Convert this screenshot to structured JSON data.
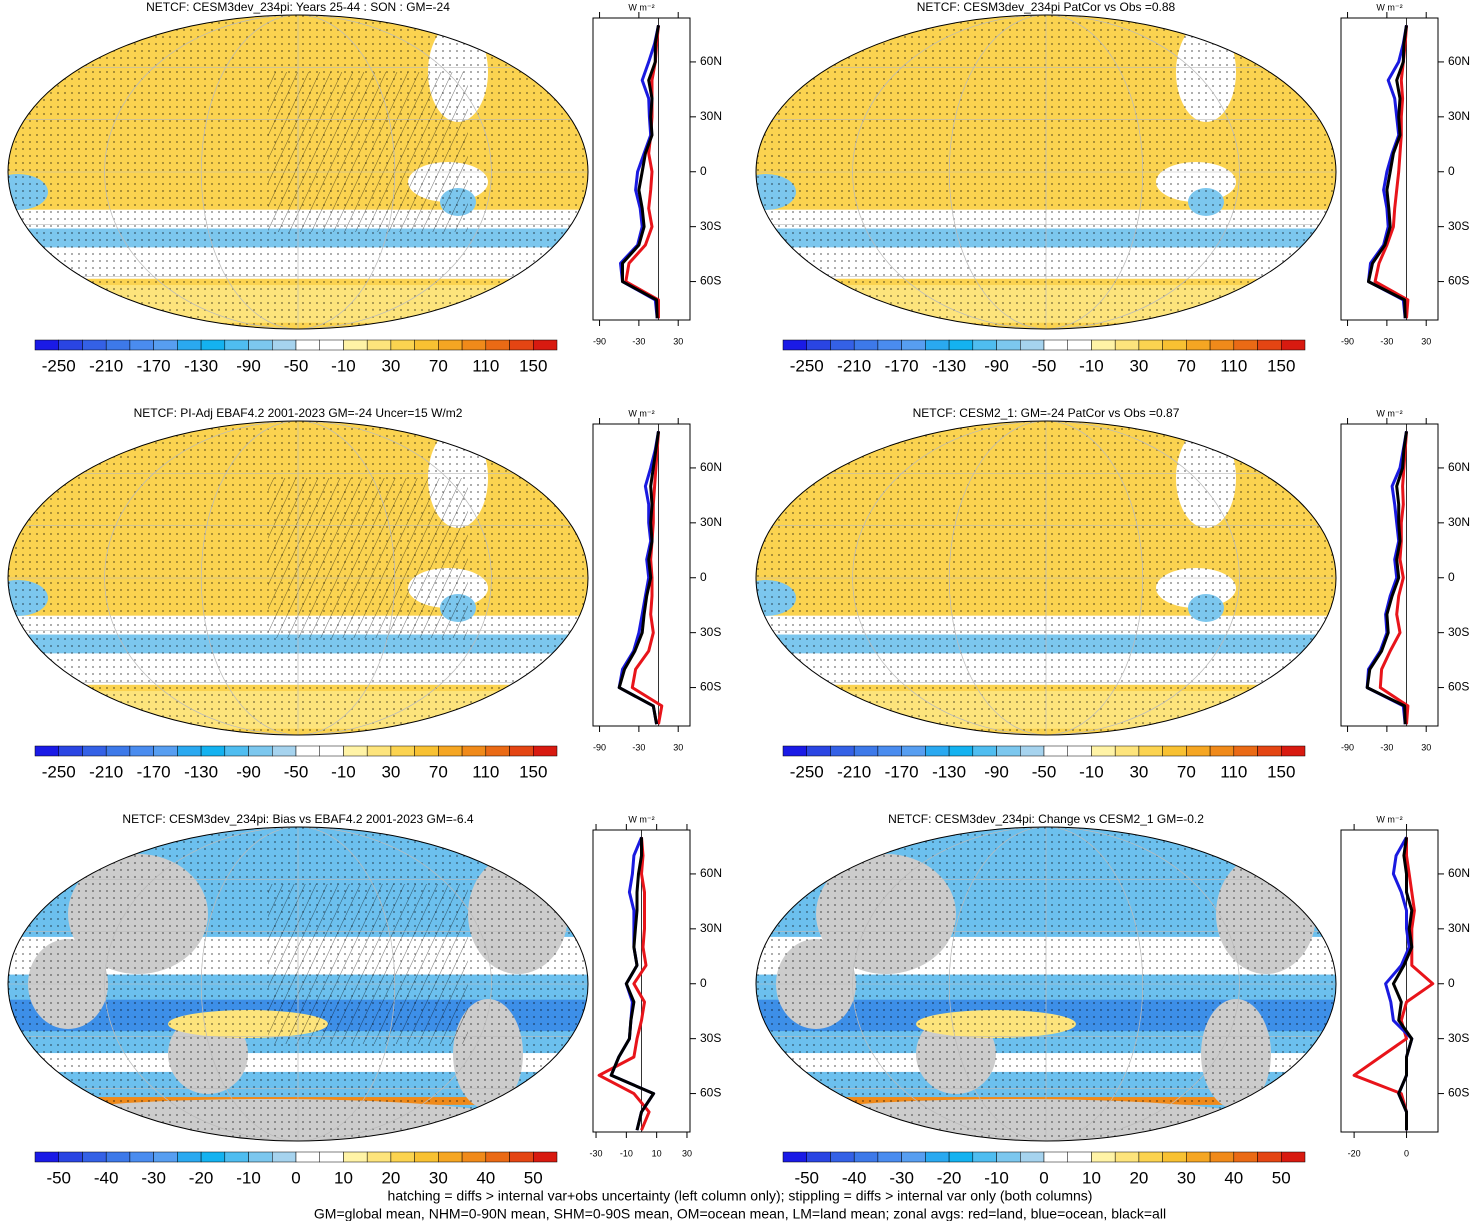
{
  "chart_data": [
    {
      "type": "line",
      "title": "NETCF: CESM3dev_234pi: Years 25-44 : SON : GM=-24",
      "colorbar": {
        "colors": [
          "#1a1ae6",
          "#2a45e3",
          "#3461e6",
          "#3d79e9",
          "#4a8cef",
          "#579ef1",
          "#2aa9f0",
          "#14b2f0",
          "#4fbdf0",
          "#7cc7ee",
          "#a6d3ee",
          "#ffffff",
          "#ffffff",
          "#fff3a6",
          "#fde47c",
          "#fbd350",
          "#f8c132",
          "#f5a623",
          "#f08a1a",
          "#ea6a15",
          "#e44513",
          "#d81a10"
        ],
        "labels": [
          -250,
          -210,
          -170,
          -130,
          -90,
          -50,
          -10,
          30,
          70,
          110,
          150
        ]
      },
      "ylabel": "W m⁻²",
      "x": [
        -80,
        -70,
        -60,
        -50,
        -40,
        -30,
        -20,
        -10,
        0,
        10,
        20,
        30,
        40,
        50,
        60,
        70,
        80
      ],
      "series": [
        {
          "color": "#e8141a",
          "values": [
            0,
            0,
            -50,
            -45,
            -20,
            -10,
            -15,
            -12,
            -10,
            -15,
            -12,
            -10,
            -10,
            -10,
            -5,
            -3,
            0
          ]
        },
        {
          "color": "#1a1ae0",
          "values": [
            -2,
            -5,
            -55,
            -58,
            -32,
            -25,
            -28,
            -35,
            -32,
            -22,
            -12,
            -14,
            -15,
            -25,
            -15,
            -6,
            0
          ]
        },
        {
          "color": "#000000",
          "values": [
            -2,
            -3,
            -55,
            -55,
            -30,
            -22,
            -25,
            -30,
            -25,
            -20,
            -10,
            -12,
            -10,
            -15,
            -5,
            -5,
            0
          ]
        }
      ],
      "xlim": [
        -81,
        84
      ],
      "xticks": [
        {
          "value": 60,
          "label": "60N"
        },
        {
          "value": 30,
          "label": "30N"
        },
        0,
        {
          "value": -30,
          "label": "30S"
        },
        {
          "value": -60,
          "label": "60S"
        }
      ],
      "ylim": [
        -100,
        48
      ],
      "yticks": [
        -90,
        -30,
        30
      ]
    },
    {
      "type": "line",
      "title": "NETCF: CESM3dev_234pi PatCor vs Obs =0.88",
      "colorbar": {
        "colors": [
          "#1a1ae6",
          "#2a45e3",
          "#3461e6",
          "#3d79e9",
          "#4a8cef",
          "#579ef1",
          "#2aa9f0",
          "#14b2f0",
          "#4fbdf0",
          "#7cc7ee",
          "#a6d3ee",
          "#ffffff",
          "#ffffff",
          "#fff3a6",
          "#fde47c",
          "#fbd350",
          "#f8c132",
          "#f5a623",
          "#f08a1a",
          "#ea6a15",
          "#e44513",
          "#d81a10"
        ],
        "labels": [
          -250,
          -210,
          -170,
          -130,
          -90,
          -50,
          -10,
          30,
          70,
          110,
          150
        ]
      },
      "ylabel": "W m⁻²",
      "x": [
        -80,
        -70,
        -60,
        -50,
        -40,
        -30,
        -20,
        -10,
        0,
        10,
        20,
        30,
        40,
        50,
        60,
        70,
        80
      ],
      "series": [
        {
          "color": "#e8141a",
          "values": [
            0,
            2,
            -48,
            -42,
            -30,
            -20,
            -18,
            -15,
            -12,
            -10,
            -8,
            -8,
            -6,
            -8,
            -5,
            -2,
            0
          ]
        },
        {
          "color": "#1a1ae0",
          "values": [
            -2,
            -5,
            -58,
            -55,
            -35,
            -28,
            -30,
            -35,
            -30,
            -22,
            -12,
            -15,
            -18,
            -28,
            -12,
            -5,
            0
          ]
        },
        {
          "color": "#000000",
          "values": [
            -2,
            -3,
            -58,
            -52,
            -33,
            -25,
            -27,
            -30,
            -25,
            -20,
            -10,
            -12,
            -10,
            -15,
            -5,
            -4,
            0
          ]
        }
      ],
      "xlim": [
        -81,
        84
      ],
      "xticks": [
        {
          "value": 60,
          "label": "60N"
        },
        {
          "value": 30,
          "label": "30N"
        },
        0,
        {
          "value": -30,
          "label": "30S"
        },
        {
          "value": -60,
          "label": "60S"
        }
      ],
      "ylim": [
        -100,
        48
      ],
      "yticks": [
        -90,
        -30,
        30
      ]
    },
    {
      "type": "line",
      "title": "NETCF: PI-Adj EBAF4.2 2001-2023 GM=-24 Uncer=15 W/m2",
      "colorbar": {
        "colors": [
          "#1a1ae6",
          "#2a45e3",
          "#3461e6",
          "#3d79e9",
          "#4a8cef",
          "#579ef1",
          "#2aa9f0",
          "#14b2f0",
          "#4fbdf0",
          "#7cc7ee",
          "#a6d3ee",
          "#ffffff",
          "#ffffff",
          "#fff3a6",
          "#fde47c",
          "#fbd350",
          "#f8c132",
          "#f5a623",
          "#f08a1a",
          "#ea6a15",
          "#e44513",
          "#d81a10"
        ],
        "labels": [
          -250,
          -210,
          -170,
          -130,
          -90,
          -50,
          -10,
          30,
          70,
          110,
          150
        ]
      },
      "ylabel": "W m⁻²",
      "x": [
        -80,
        -70,
        -60,
        -50,
        -40,
        -30,
        -20,
        -10,
        0,
        10,
        20,
        30,
        40,
        50,
        60,
        70,
        80
      ],
      "series": [
        {
          "color": "#e8141a",
          "values": [
            0,
            5,
            -40,
            -35,
            -15,
            -8,
            -12,
            -10,
            -10,
            -12,
            -10,
            -8,
            -8,
            -6,
            -4,
            -2,
            0
          ]
        },
        {
          "color": "#1a1ae0",
          "values": [
            -3,
            -8,
            -60,
            -55,
            -38,
            -30,
            -25,
            -20,
            -15,
            -18,
            -12,
            -15,
            -15,
            -20,
            -12,
            -5,
            0
          ]
        },
        {
          "color": "#000000",
          "values": [
            -3,
            -8,
            -60,
            -52,
            -36,
            -25,
            -22,
            -18,
            -12,
            -15,
            -10,
            -12,
            -10,
            -12,
            -8,
            -4,
            0
          ]
        }
      ],
      "xlim": [
        -81,
        84
      ],
      "xticks": [
        {
          "value": 60,
          "label": "60N"
        },
        {
          "value": 30,
          "label": "30N"
        },
        0,
        {
          "value": -30,
          "label": "30S"
        },
        {
          "value": -60,
          "label": "60S"
        }
      ],
      "ylim": [
        -100,
        48
      ],
      "yticks": [
        -90,
        -30,
        30
      ]
    },
    {
      "type": "line",
      "title": "NETCF: CESM2_1: GM=-24 PatCor vs Obs =0.87",
      "colorbar": {
        "colors": [
          "#1a1ae6",
          "#2a45e3",
          "#3461e6",
          "#3d79e9",
          "#4a8cef",
          "#579ef1",
          "#2aa9f0",
          "#14b2f0",
          "#4fbdf0",
          "#7cc7ee",
          "#a6d3ee",
          "#ffffff",
          "#ffffff",
          "#fff3a6",
          "#fde47c",
          "#fbd350",
          "#f8c132",
          "#f5a623",
          "#f08a1a",
          "#ea6a15",
          "#e44513",
          "#d81a10"
        ],
        "labels": [
          -250,
          -210,
          -170,
          -130,
          -90,
          -50,
          -10,
          30,
          70,
          110,
          150
        ]
      },
      "ylabel": "W m⁻²",
      "x": [
        -80,
        -70,
        -60,
        -50,
        -40,
        -30,
        -20,
        -10,
        0,
        10,
        20,
        30,
        40,
        50,
        60,
        70,
        80
      ],
      "series": [
        {
          "color": "#e8141a",
          "values": [
            0,
            2,
            -40,
            -38,
            -25,
            -10,
            -15,
            -12,
            -5,
            -10,
            -8,
            -8,
            -5,
            -6,
            -4,
            -2,
            0
          ]
        },
        {
          "color": "#1a1ae0",
          "values": [
            -2,
            -5,
            -60,
            -58,
            -40,
            -30,
            -32,
            -25,
            -15,
            -18,
            -12,
            -15,
            -18,
            -22,
            -10,
            -5,
            0
          ]
        },
        {
          "color": "#000000",
          "values": [
            -2,
            -3,
            -60,
            -56,
            -38,
            -28,
            -30,
            -22,
            -12,
            -15,
            -10,
            -12,
            -12,
            -15,
            -6,
            -4,
            0
          ]
        }
      ],
      "xlim": [
        -81,
        84
      ],
      "xticks": [
        {
          "value": 60,
          "label": "60N"
        },
        {
          "value": 30,
          "label": "30N"
        },
        0,
        {
          "value": -30,
          "label": "30S"
        },
        {
          "value": -60,
          "label": "60S"
        }
      ],
      "ylim": [
        -100,
        48
      ],
      "yticks": [
        -90,
        -30,
        30
      ]
    },
    {
      "type": "line",
      "title": "NETCF: CESM3dev_234pi: Bias vs EBAF4.2 2001-2023  GM=-6.4",
      "colorbar": {
        "colors": [
          "#1a1ae6",
          "#2a45e3",
          "#3461e6",
          "#3d79e9",
          "#4a8cef",
          "#579ef1",
          "#2aa9f0",
          "#14b2f0",
          "#4fbdf0",
          "#7cc7ee",
          "#a6d3ee",
          "#ffffff",
          "#ffffff",
          "#fff3a6",
          "#fde47c",
          "#fbd350",
          "#f8c132",
          "#f5a623",
          "#f08a1a",
          "#ea6a15",
          "#e44513",
          "#d81a10"
        ],
        "labels": [
          -50,
          -40,
          -30,
          -20,
          -10,
          0,
          10,
          20,
          30,
          40,
          50
        ]
      },
      "ylabel": "W m⁻²",
      "x": [
        -80,
        -70,
        -60,
        -50,
        -40,
        -30,
        -20,
        -10,
        0,
        10,
        20,
        30,
        40,
        50,
        60,
        70,
        80
      ],
      "series": [
        {
          "color": "#e8141a",
          "values": [
            0,
            5,
            -5,
            -28,
            -5,
            -3,
            0,
            2,
            -5,
            3,
            1,
            2,
            2,
            2,
            0,
            1,
            0
          ]
        },
        {
          "color": "#1a1ae0",
          "values": [
            -3,
            0,
            8,
            -20,
            -15,
            -8,
            -7,
            -6,
            -10,
            -3,
            -5,
            -5,
            -5,
            -8,
            -6,
            -5,
            0
          ]
        },
        {
          "color": "#000000",
          "values": [
            -3,
            0,
            8,
            -20,
            -15,
            -8,
            -7,
            -5,
            -10,
            -3,
            -5,
            -4,
            -3,
            -3,
            -2,
            0,
            0
          ]
        }
      ],
      "xlim": [
        -81,
        84
      ],
      "xticks": [
        {
          "value": 60,
          "label": "60N"
        },
        {
          "value": 30,
          "label": "30N"
        },
        0,
        {
          "value": -30,
          "label": "30S"
        },
        {
          "value": -60,
          "label": "60S"
        }
      ],
      "ylim": [
        -32,
        32
      ],
      "yticks": [
        -30,
        -10,
        10,
        30
      ]
    },
    {
      "type": "line",
      "title": "NETCF: CESM3dev_234pi: Change vs CESM2_1 GM=-0.2",
      "colorbar": {
        "colors": [
          "#1a1ae6",
          "#2a45e3",
          "#3461e6",
          "#3d79e9",
          "#4a8cef",
          "#579ef1",
          "#2aa9f0",
          "#14b2f0",
          "#4fbdf0",
          "#7cc7ee",
          "#a6d3ee",
          "#ffffff",
          "#ffffff",
          "#fff3a6",
          "#fde47c",
          "#fbd350",
          "#f8c132",
          "#f5a623",
          "#f08a1a",
          "#ea6a15",
          "#e44513",
          "#d81a10"
        ],
        "labels": [
          -50,
          -40,
          -30,
          -20,
          -10,
          0,
          10,
          20,
          30,
          40,
          50
        ]
      },
      "ylabel": "W m⁻²",
      "x": [
        -80,
        -70,
        -60,
        -50,
        -40,
        -30,
        -20,
        -10,
        0,
        10,
        20,
        30,
        40,
        50,
        60,
        70,
        80
      ],
      "series": [
        {
          "color": "#e8141a",
          "values": [
            0,
            0,
            -2,
            -20,
            -10,
            0,
            -2,
            0,
            10,
            2,
            2,
            2,
            3,
            2,
            1,
            0,
            0
          ]
        },
        {
          "color": "#1a1ae0",
          "values": [
            0,
            0,
            -3,
            0,
            0,
            2,
            -5,
            -6,
            -8,
            -2,
            1,
            0,
            0,
            -2,
            -5,
            -4,
            0
          ]
        },
        {
          "color": "#000000",
          "values": [
            0,
            0,
            -3,
            0,
            0,
            2,
            -3,
            -2,
            -5,
            -1,
            2,
            1,
            2,
            0,
            0,
            -1,
            0
          ]
        }
      ],
      "xlim": [
        -81,
        84
      ],
      "xticks": [
        {
          "value": 60,
          "label": "60N"
        },
        {
          "value": 30,
          "label": "30N"
        },
        0,
        {
          "value": -30,
          "label": "30S"
        },
        {
          "value": -60,
          "label": "60S"
        }
      ],
      "ylim": [
        -25,
        12
      ],
      "yticks": [
        -20,
        0
      ]
    }
  ],
  "notes": [
    "hatching = diffs > internal var+obs uncertainty (left column only); stippling = diffs > internal var only (both columns)",
    "GM=global mean, NHM=0-90N mean, SHM=0-90S mean, OM=ocean mean, LM=land mean; zonal avgs: red=land, blue=ocean, black=all"
  ]
}
